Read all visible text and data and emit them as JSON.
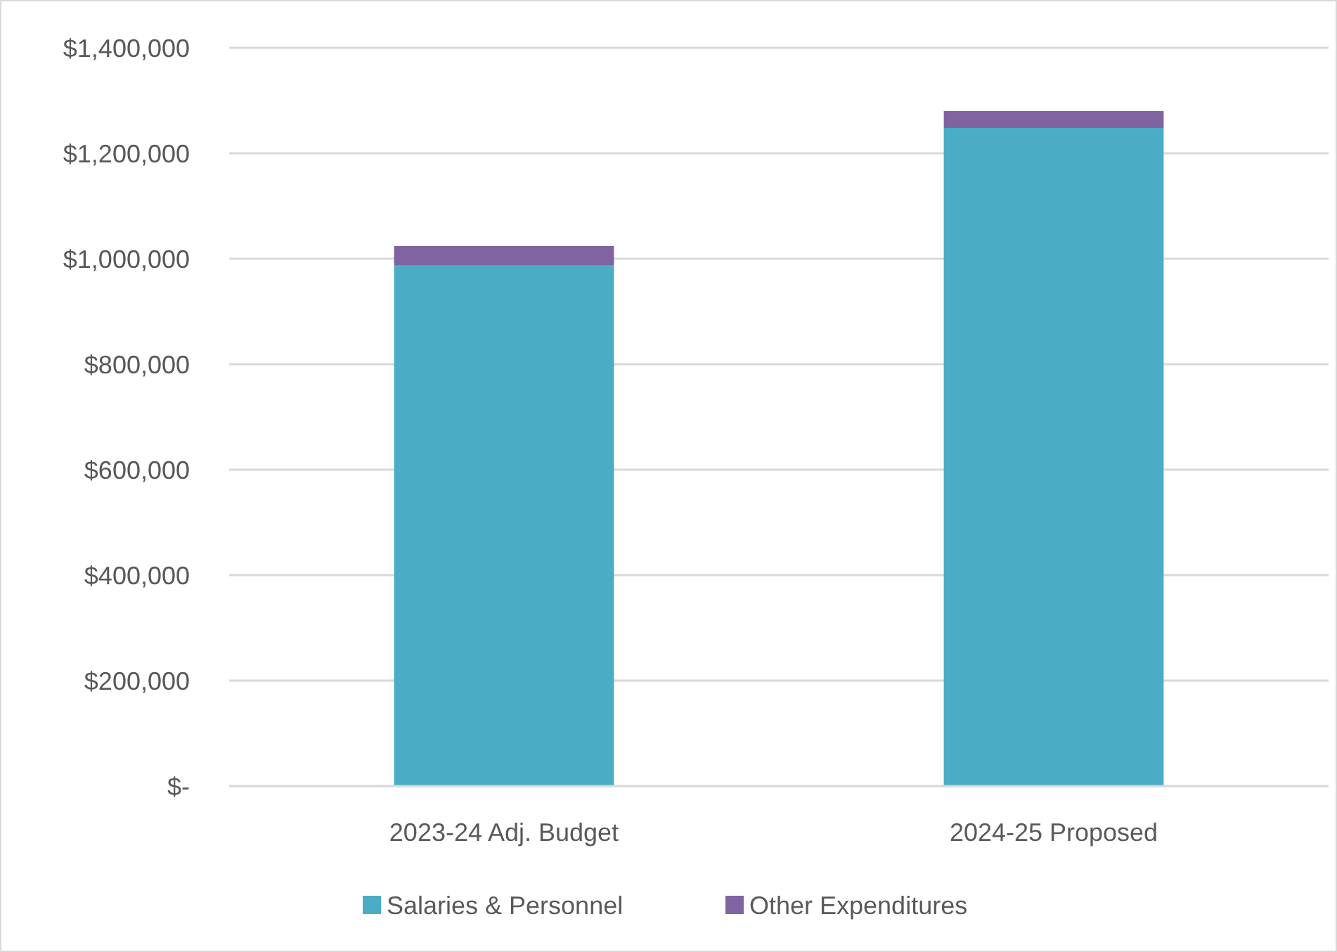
{
  "chart_data": {
    "type": "bar",
    "stacked": true,
    "categories": [
      "2023-24 Adj. Budget",
      "2024-25 Proposed"
    ],
    "series": [
      {
        "name": "Salaries & Personnel",
        "color": "#4bacc6",
        "values": [
          987000,
          1248000
        ]
      },
      {
        "name": "Other Expenditures",
        "color": "#8064a2",
        "values": [
          37000,
          32000
        ]
      }
    ],
    "ylim": [
      0,
      1400000
    ],
    "yticks": [
      {
        "value": 0,
        "label": "$-"
      },
      {
        "value": 200000,
        "label": "$200,000"
      },
      {
        "value": 400000,
        "label": "$400,000"
      },
      {
        "value": 600000,
        "label": "$600,000"
      },
      {
        "value": 800000,
        "label": "$800,000"
      },
      {
        "value": 1000000,
        "label": "$1,000,000"
      },
      {
        "value": 1200000,
        "label": "$1,200,000"
      },
      {
        "value": 1400000,
        "label": "$1,400,000"
      }
    ],
    "grid": "y",
    "legend": "bottom"
  }
}
